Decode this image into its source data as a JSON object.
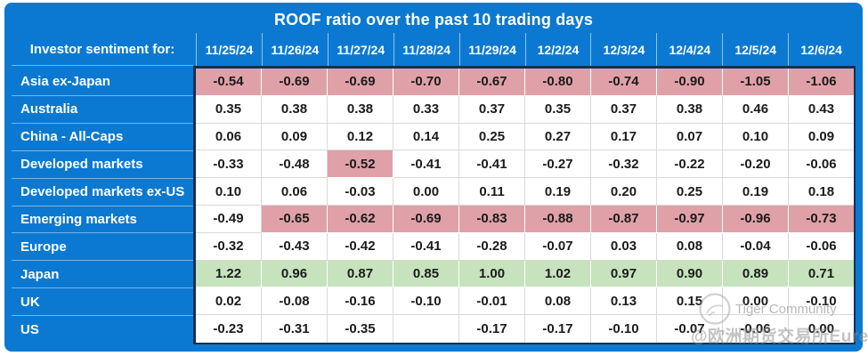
{
  "title": "ROOF ratio over the past 10 trading days",
  "corner_label": "Investor sentiment for:",
  "dates": [
    "11/25/24",
    "11/26/24",
    "11/27/24",
    "11/28/24",
    "11/29/24",
    "12/2/24",
    "12/3/24",
    "12/4/24",
    "12/5/24",
    "12/6/24"
  ],
  "rows": [
    {
      "label": "Asia ex-Japan",
      "values": [
        "-0.54",
        "-0.69",
        "-0.69",
        "-0.70",
        "-0.67",
        "-0.80",
        "-0.74",
        "-0.90",
        "-1.05",
        "-1.06"
      ],
      "highlights": [
        "pink",
        "pink",
        "pink",
        "pink",
        "pink",
        "pink",
        "pink",
        "pink",
        "pink",
        "pink"
      ]
    },
    {
      "label": "Australia",
      "values": [
        "0.35",
        "0.38",
        "0.38",
        "0.33",
        "0.37",
        "0.35",
        "0.37",
        "0.38",
        "0.46",
        "0.43"
      ],
      "highlights": [
        "none",
        "none",
        "none",
        "none",
        "none",
        "none",
        "none",
        "none",
        "none",
        "none"
      ]
    },
    {
      "label": "China - All-Caps",
      "values": [
        "0.06",
        "0.09",
        "0.12",
        "0.14",
        "0.25",
        "0.27",
        "0.17",
        "0.07",
        "0.10",
        "0.09"
      ],
      "highlights": [
        "none",
        "none",
        "none",
        "none",
        "none",
        "none",
        "none",
        "none",
        "none",
        "none"
      ]
    },
    {
      "label": "Developed markets",
      "values": [
        "-0.33",
        "-0.48",
        "-0.52",
        "-0.41",
        "-0.41",
        "-0.27",
        "-0.32",
        "-0.22",
        "-0.20",
        "-0.06"
      ],
      "highlights": [
        "none",
        "none",
        "pink",
        "none",
        "none",
        "none",
        "none",
        "none",
        "none",
        "none"
      ]
    },
    {
      "label": "Developed markets ex-US",
      "values": [
        "0.10",
        "0.06",
        "-0.03",
        "0.00",
        "0.11",
        "0.19",
        "0.20",
        "0.25",
        "0.19",
        "0.18"
      ],
      "highlights": [
        "none",
        "none",
        "none",
        "none",
        "none",
        "none",
        "none",
        "none",
        "none",
        "none"
      ]
    },
    {
      "label": "Emerging markets",
      "values": [
        "-0.49",
        "-0.65",
        "-0.62",
        "-0.69",
        "-0.83",
        "-0.88",
        "-0.87",
        "-0.97",
        "-0.96",
        "-0.73"
      ],
      "highlights": [
        "none",
        "pink",
        "pink",
        "pink",
        "pink",
        "pink",
        "pink",
        "pink",
        "pink",
        "pink"
      ]
    },
    {
      "label": "Europe",
      "values": [
        "-0.32",
        "-0.43",
        "-0.42",
        "-0.41",
        "-0.28",
        "-0.07",
        "0.03",
        "0.08",
        "-0.04",
        "-0.06"
      ],
      "highlights": [
        "none",
        "none",
        "none",
        "none",
        "none",
        "none",
        "none",
        "none",
        "none",
        "none"
      ]
    },
    {
      "label": "Japan",
      "values": [
        "1.22",
        "0.96",
        "0.87",
        "0.85",
        "1.00",
        "1.02",
        "0.97",
        "0.90",
        "0.89",
        "0.71"
      ],
      "highlights": [
        "green",
        "green",
        "green",
        "green",
        "green",
        "green",
        "green",
        "green",
        "green",
        "green"
      ]
    },
    {
      "label": "UK",
      "values": [
        "0.02",
        "-0.08",
        "-0.16",
        "-0.10",
        "-0.01",
        "0.08",
        "0.13",
        "0.15",
        "0.00",
        "-0.10"
      ],
      "highlights": [
        "none",
        "none",
        "none",
        "none",
        "none",
        "none",
        "none",
        "none",
        "none",
        "none"
      ]
    },
    {
      "label": "US",
      "values": [
        "-0.23",
        "-0.31",
        "-0.35",
        "",
        "-0.17",
        "-0.17",
        "-0.10",
        "-0.07",
        "-0.06",
        "0.00"
      ],
      "highlights": [
        "none",
        "none",
        "none",
        "none",
        "none",
        "none",
        "none",
        "none",
        "none",
        "none"
      ]
    }
  ],
  "watermarks": {
    "community": "Tiger Community",
    "exchange": "@欧洲期货交易所Eurex",
    "logo_icon": "tiger-circle-logo"
  },
  "colors": {
    "header_blue": "#0B79D2",
    "dark_border": "#142F52",
    "pink": "#DFA1A7",
    "green": "#C7E3BD",
    "cell_text": "#1B1B1B",
    "separator": "#D9D9D9"
  },
  "chart_data": {
    "type": "table",
    "title": "ROOF ratio over the past 10 trading days",
    "x": [
      "11/25/24",
      "11/26/24",
      "11/27/24",
      "11/28/24",
      "11/29/24",
      "12/2/24",
      "12/3/24",
      "12/4/24",
      "12/5/24",
      "12/6/24"
    ],
    "series": [
      {
        "name": "Asia ex-Japan",
        "values": [
          -0.54,
          -0.69,
          -0.69,
          -0.7,
          -0.67,
          -0.8,
          -0.74,
          -0.9,
          -1.05,
          -1.06
        ]
      },
      {
        "name": "Australia",
        "values": [
          0.35,
          0.38,
          0.38,
          0.33,
          0.37,
          0.35,
          0.37,
          0.38,
          0.46,
          0.43
        ]
      },
      {
        "name": "China - All-Caps",
        "values": [
          0.06,
          0.09,
          0.12,
          0.14,
          0.25,
          0.27,
          0.17,
          0.07,
          0.1,
          0.09
        ]
      },
      {
        "name": "Developed markets",
        "values": [
          -0.33,
          -0.48,
          -0.52,
          -0.41,
          -0.41,
          -0.27,
          -0.32,
          -0.22,
          -0.2,
          -0.06
        ]
      },
      {
        "name": "Developed markets ex-US",
        "values": [
          0.1,
          0.06,
          -0.03,
          0.0,
          0.11,
          0.19,
          0.2,
          0.25,
          0.19,
          0.18
        ]
      },
      {
        "name": "Emerging markets",
        "values": [
          -0.49,
          -0.65,
          -0.62,
          -0.69,
          -0.83,
          -0.88,
          -0.87,
          -0.97,
          -0.96,
          -0.73
        ]
      },
      {
        "name": "Europe",
        "values": [
          -0.32,
          -0.43,
          -0.42,
          -0.41,
          -0.28,
          -0.07,
          0.03,
          0.08,
          -0.04,
          -0.06
        ]
      },
      {
        "name": "Japan",
        "values": [
          1.22,
          0.96,
          0.87,
          0.85,
          1.0,
          1.02,
          0.97,
          0.9,
          0.89,
          0.71
        ]
      },
      {
        "name": "UK",
        "values": [
          0.02,
          -0.08,
          -0.16,
          -0.1,
          -0.01,
          0.08,
          0.13,
          0.15,
          0.0,
          -0.1
        ]
      },
      {
        "name": "US",
        "values": [
          -0.23,
          -0.31,
          -0.35,
          null,
          -0.17,
          -0.17,
          -0.1,
          -0.07,
          -0.06,
          0.0
        ]
      }
    ],
    "highlight_rule": "cells <= -0.5 shaded pink, cells >= 0.5 shaded green; US 11/28/24 blank"
  }
}
